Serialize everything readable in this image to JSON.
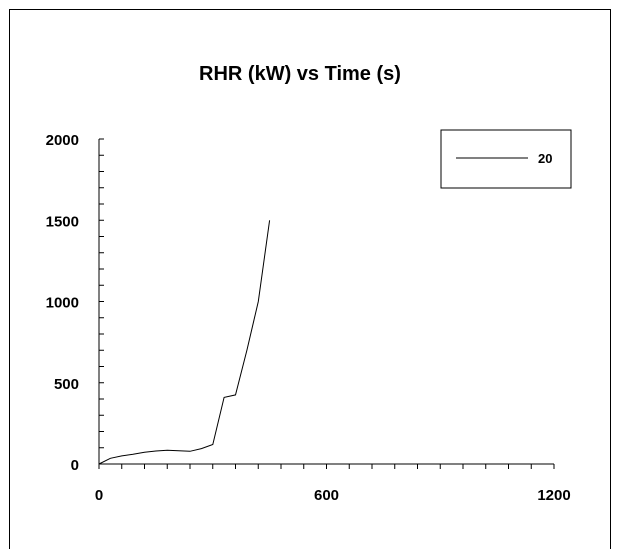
{
  "chart_data": {
    "type": "line",
    "title": "RHR (kW) vs Time (s)",
    "xlabel": "",
    "ylabel": "",
    "xlim": [
      0,
      1200
    ],
    "ylim": [
      0,
      2000
    ],
    "x_ticks": [
      0,
      600,
      1200
    ],
    "y_ticks": [
      0,
      500,
      1000,
      1500,
      2000
    ],
    "x_minor_step": 60,
    "y_minor_step": 100,
    "grid": false,
    "legend_position": "top-right",
    "series": [
      {
        "name": "20",
        "color": "#000000",
        "x": [
          0,
          30,
          60,
          90,
          120,
          150,
          180,
          210,
          240,
          270,
          300,
          330,
          360,
          390,
          420,
          450
        ],
        "y": [
          0,
          35,
          50,
          60,
          72,
          80,
          85,
          82,
          78,
          95,
          120,
          410,
          425,
          700,
          1000,
          1500
        ]
      }
    ]
  }
}
